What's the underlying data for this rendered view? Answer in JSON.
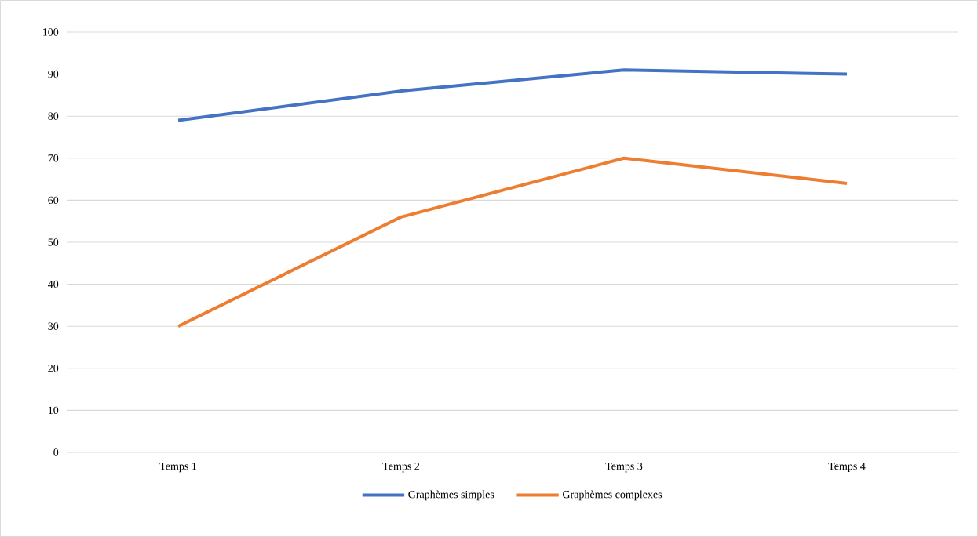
{
  "chart_data": {
    "type": "line",
    "categories": [
      "Temps 1",
      "Temps 2",
      "Temps 3",
      "Temps 4"
    ],
    "series": [
      {
        "name": "Graphèmes simples",
        "color": "#4472c4",
        "values": [
          79,
          86,
          91,
          90
        ]
      },
      {
        "name": "Graphèmes complexes",
        "color": "#ed7d31",
        "values": [
          30,
          56,
          70,
          64
        ]
      }
    ],
    "ylim": [
      0,
      100
    ],
    "yticks": [
      0,
      10,
      20,
      30,
      40,
      50,
      60,
      70,
      80,
      90,
      100
    ],
    "grid": "y",
    "legend": "bottom"
  }
}
